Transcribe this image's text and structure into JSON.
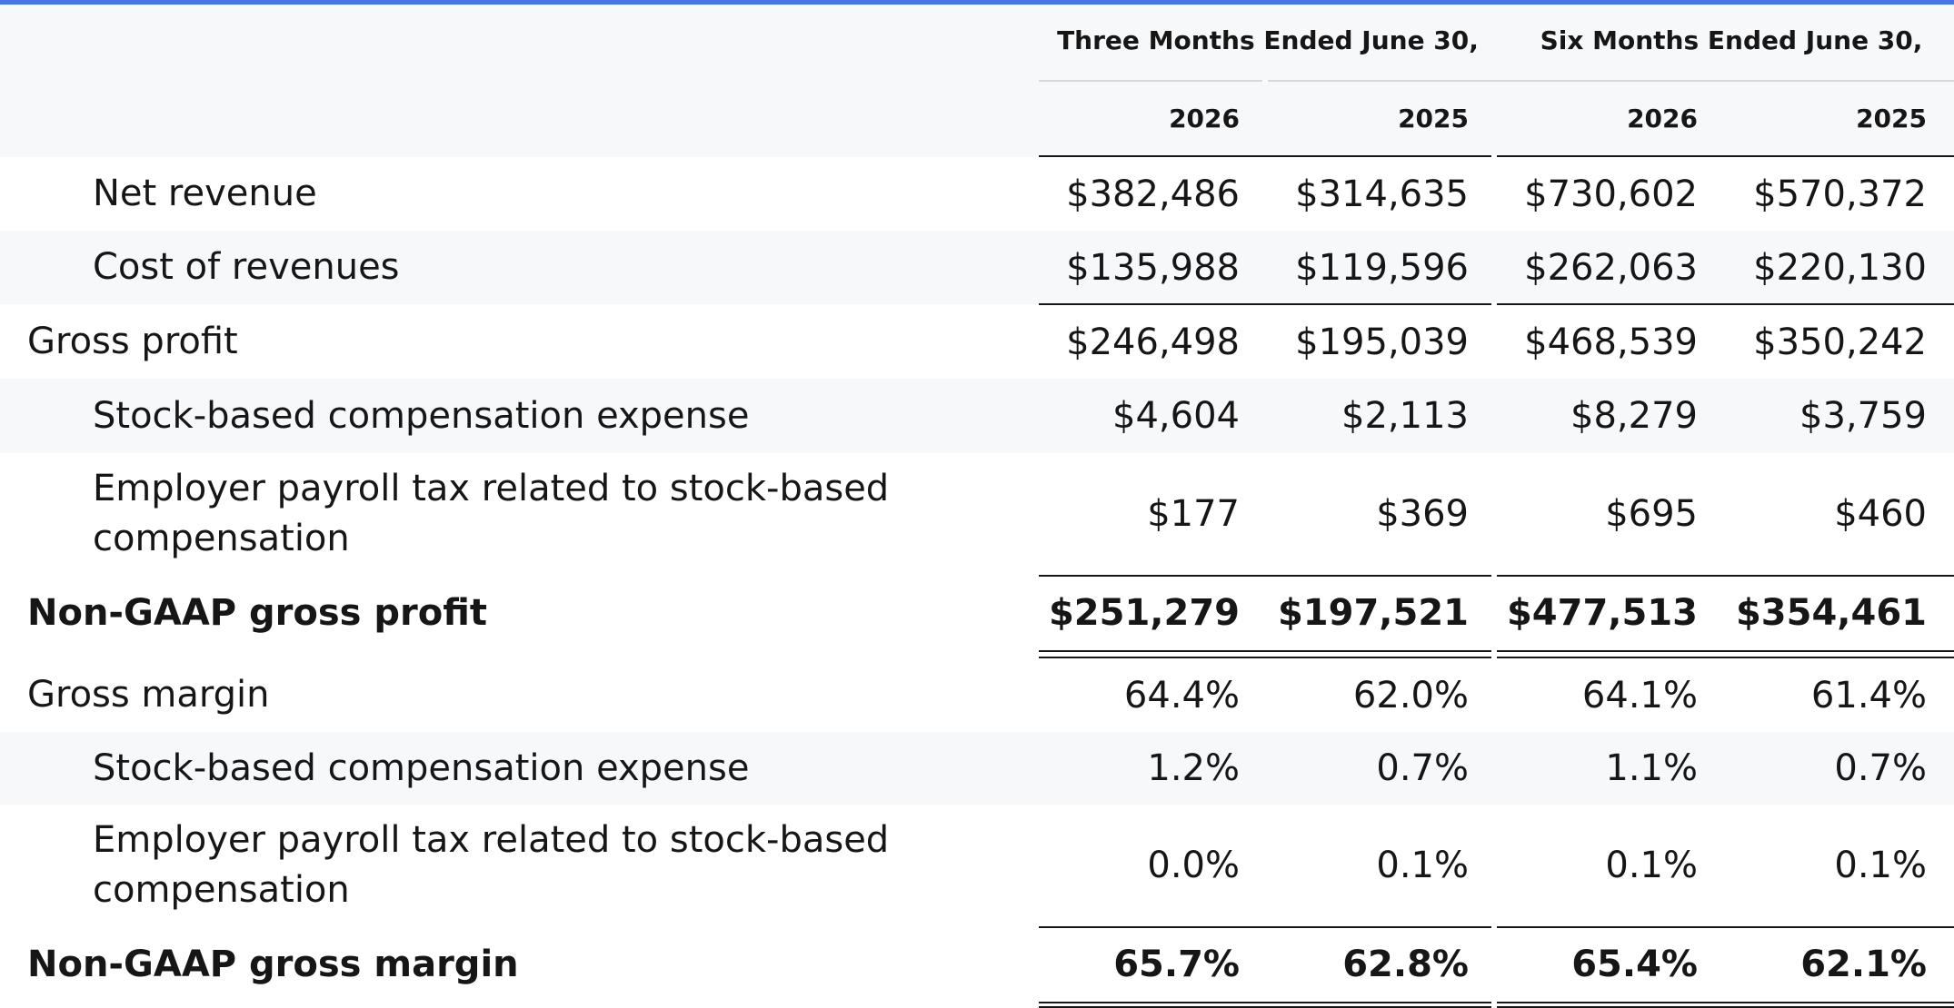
{
  "colors": {
    "accent_bar": "#4a74e0",
    "header_background": "#f7f8fa",
    "row_stripe": "#f7f8fa",
    "text": "#161616"
  },
  "header": {
    "groups": [
      "Three Months Ended June 30,",
      "Six Months Ended June 30,"
    ],
    "years": [
      "2026",
      "2025",
      "2026",
      "2025"
    ]
  },
  "rows": [
    {
      "label": "Net revenue",
      "values": [
        "$382,486",
        "$314,635",
        "$730,602",
        "$570,372"
      ]
    },
    {
      "label": "Cost of revenues",
      "values": [
        "$135,988",
        "$119,596",
        "$262,063",
        "$220,130"
      ]
    },
    {
      "label": "Gross profit",
      "values": [
        "$246,498",
        "$195,039",
        "$468,539",
        "$350,242"
      ]
    },
    {
      "label": "Stock-based compensation expense",
      "values": [
        "$4,604",
        "$2,113",
        "$8,279",
        "$3,759"
      ]
    },
    {
      "label": "Employer payroll tax related to stock-based compensation",
      "values": [
        "$177",
        "$369",
        "$695",
        "$460"
      ]
    },
    {
      "label": "Non-GAAP gross profit",
      "values": [
        "$251,279",
        "$197,521",
        "$477,513",
        "$354,461"
      ]
    },
    {
      "label": "Gross margin",
      "values": [
        "64.4%",
        "62.0%",
        "64.1%",
        "61.4%"
      ]
    },
    {
      "label": "Stock-based compensation expense",
      "values": [
        "1.2%",
        "0.7%",
        "1.1%",
        "0.7%"
      ]
    },
    {
      "label": "Employer payroll tax related to stock-based compensation",
      "values": [
        "0.0%",
        "0.1%",
        "0.1%",
        "0.1%"
      ]
    },
    {
      "label": "Non-GAAP gross margin",
      "values": [
        "65.7%",
        "62.8%",
        "65.4%",
        "62.1%"
      ]
    }
  ]
}
